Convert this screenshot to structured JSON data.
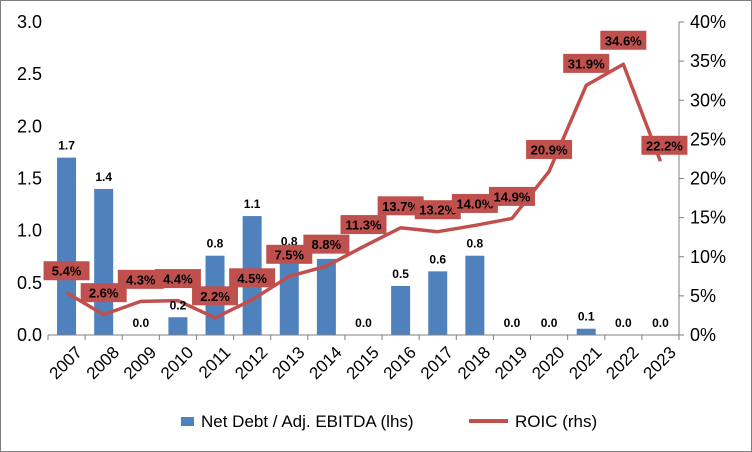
{
  "chart_data": {
    "type": "bar+line",
    "categories": [
      "2007",
      "2008",
      "2009",
      "2010",
      "2011",
      "2012",
      "2013",
      "2014",
      "2015",
      "2016",
      "2017",
      "2018",
      "2019",
      "2020",
      "2021",
      "2022",
      "2023"
    ],
    "series": [
      {
        "name": "Net Debt / Adj. EBITDA (lhs)",
        "type": "bar",
        "axis": "left",
        "color": "#4f81bd",
        "values": [
          1.7,
          1.4,
          0.0,
          0.17,
          0.76,
          1.14,
          0.78,
          0.73,
          0.0,
          0.47,
          0.61,
          0.76,
          0.0,
          0.0,
          0.06,
          0.0,
          0.0
        ],
        "labels": [
          "1.7",
          "1.4",
          "0.0",
          "0.2",
          "0.8",
          "1.1",
          "0.8",
          "",
          "0.0",
          "0.5",
          "0.6",
          "0.8",
          "0.0",
          "0.0",
          "0.1",
          "0.0",
          "0.0"
        ]
      },
      {
        "name": "ROIC (rhs)",
        "type": "line",
        "axis": "right",
        "color": "#c0504d",
        "values": [
          5.4,
          2.6,
          4.3,
          4.4,
          2.2,
          4.5,
          7.5,
          8.8,
          11.3,
          13.7,
          13.2,
          14.0,
          14.9,
          20.9,
          31.9,
          34.6,
          22.2
        ],
        "labels": [
          "5.4%",
          "2.6%",
          "4.3%",
          "4.4%",
          "2.2%",
          "4.5%",
          "7.5%",
          "8.8%",
          "11.3%",
          "13.7%",
          "13.2%",
          "14.0%",
          "14.9%",
          "20.9%",
          "31.9%",
          "34.6%",
          "22.2%"
        ]
      }
    ],
    "y_left": {
      "min": 0,
      "max": 3,
      "ticks": [
        "0.0",
        "0.5",
        "1.0",
        "1.5",
        "2.0",
        "2.5",
        "3.0"
      ]
    },
    "y_right": {
      "min": 0,
      "max": 40,
      "ticks": [
        "0%",
        "5%",
        "10%",
        "15%",
        "20%",
        "25%",
        "30%",
        "35%",
        "40%"
      ]
    },
    "grid": false,
    "legend": {
      "position": "bottom"
    }
  }
}
